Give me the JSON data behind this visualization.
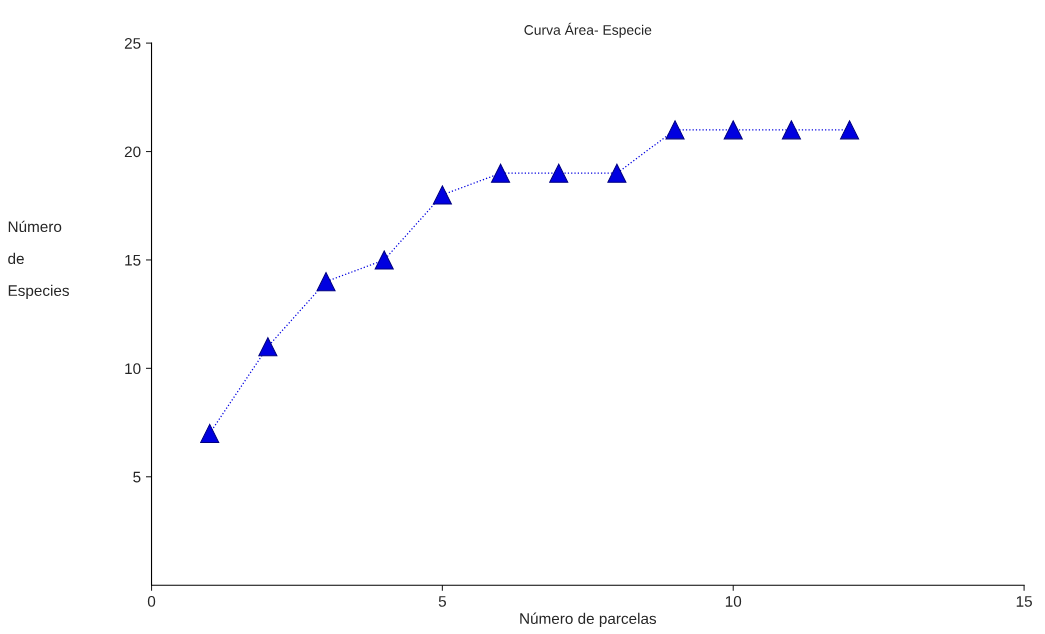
{
  "chart_data": {
    "type": "line",
    "title": "Curva Área- Especie",
    "xlabel": "Número de parcelas",
    "ylabel": "Número\nde\nEspecies",
    "x": [
      1,
      2,
      3,
      4,
      5,
      6,
      7,
      8,
      9,
      10,
      11,
      12
    ],
    "series": [
      {
        "color": "#0000e0",
        "values": [
          7,
          11,
          14,
          15,
          18,
          19,
          19,
          19,
          21,
          21,
          21,
          21
        ]
      }
    ],
    "xlim": [
      0,
      15
    ],
    "ylim": [
      0,
      25
    ],
    "xticks": [
      0,
      5,
      10,
      15
    ],
    "yticks": [
      5,
      10,
      15,
      20,
      25
    ],
    "grid": false,
    "legend": false,
    "marker": "triangle",
    "line_style": "dotted"
  }
}
